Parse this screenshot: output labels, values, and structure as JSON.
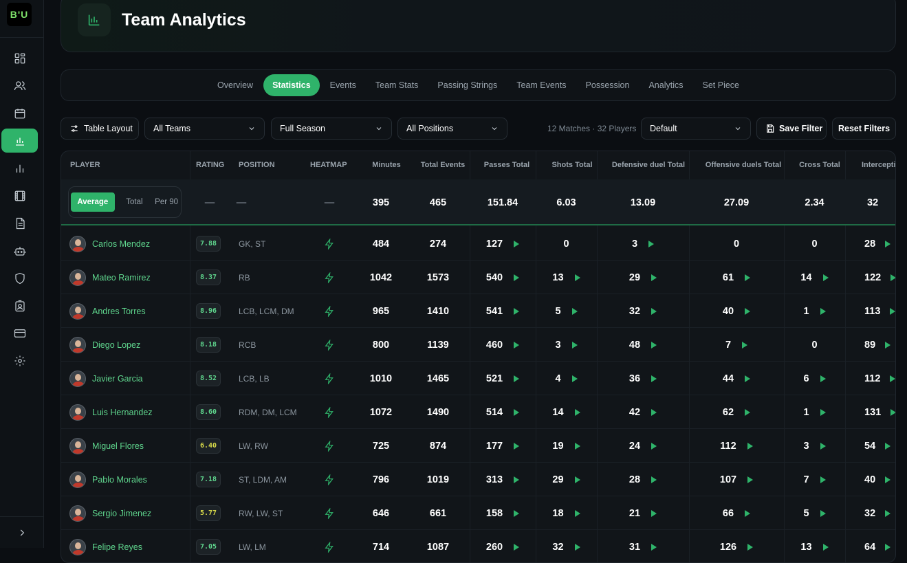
{
  "app": {
    "logo_text": "B'U"
  },
  "sidebar": {
    "items": [
      {
        "icon": "dashboard-icon"
      },
      {
        "icon": "users-icon"
      },
      {
        "icon": "calendar-icon"
      },
      {
        "icon": "analytics-icon",
        "active": true
      },
      {
        "icon": "bar-chart-icon"
      },
      {
        "icon": "film-icon"
      },
      {
        "icon": "document-icon"
      },
      {
        "icon": "robot-icon"
      },
      {
        "icon": "shield-icon"
      },
      {
        "icon": "id-badge-icon"
      },
      {
        "icon": "credit-card-icon"
      },
      {
        "icon": "gear-icon"
      }
    ],
    "collapse_icon": "chevron-right-icon"
  },
  "header": {
    "title": "Team Analytics",
    "icon": "analytics-icon"
  },
  "tabs": [
    {
      "label": "Overview"
    },
    {
      "label": "Statistics",
      "active": true
    },
    {
      "label": "Events"
    },
    {
      "label": "Team Stats"
    },
    {
      "label": "Passing Strings"
    },
    {
      "label": "Team Events"
    },
    {
      "label": "Possession"
    },
    {
      "label": "Analytics"
    },
    {
      "label": "Set Piece"
    }
  ],
  "filters": {
    "table_layout_label": "Table Layout",
    "team": "All Teams",
    "period": "Full Season",
    "position": "All Positions",
    "summary": "12 Matches · 32 Players",
    "preset": "Default",
    "save_label": "Save Filter",
    "reset_label": "Reset Filters"
  },
  "table": {
    "headers": {
      "player": "PLAYER",
      "rating": "RATING",
      "position": "POSITION",
      "heatmap": "HEATMAP",
      "minutes": "Minutes",
      "total_events": "Total Events",
      "passes": "Passes Total",
      "shots": "Shots Total",
      "def_duel": "Defensive duel Total",
      "off_duels": "Offensive duels Total",
      "cross": "Cross Total",
      "interceptions": "Interceptio"
    },
    "mode": {
      "average": "Average",
      "total": "Total",
      "per90": "Per 90"
    },
    "averages": {
      "rating": "—",
      "position": "—",
      "heatmap": "—",
      "minutes": "395",
      "total_events": "465",
      "passes": "151.84",
      "shots": "6.03",
      "def_duel": "13.09",
      "off_duels": "27.09",
      "cross": "2.34",
      "interceptions": "32"
    },
    "rows": [
      {
        "name": "Carlos Mendez",
        "rating": "7.88",
        "rating_color": "green",
        "position": "GK, ST",
        "minutes": "484",
        "total_events": "274",
        "passes": "127",
        "shots": "0",
        "def_duel": "3",
        "off_duels": "0",
        "cross": "0",
        "interceptions": "28"
      },
      {
        "name": "Mateo Ramirez",
        "rating": "8.37",
        "rating_color": "green",
        "position": "RB",
        "minutes": "1042",
        "total_events": "1573",
        "passes": "540",
        "shots": "13",
        "def_duel": "29",
        "off_duels": "61",
        "cross": "14",
        "interceptions": "122"
      },
      {
        "name": "Andres Torres",
        "rating": "8.96",
        "rating_color": "green",
        "position": "LCB, LCM, DM",
        "minutes": "965",
        "total_events": "1410",
        "passes": "541",
        "shots": "5",
        "def_duel": "32",
        "off_duels": "40",
        "cross": "1",
        "interceptions": "113"
      },
      {
        "name": "Diego Lopez",
        "rating": "8.18",
        "rating_color": "green",
        "position": "RCB",
        "minutes": "800",
        "total_events": "1139",
        "passes": "460",
        "shots": "3",
        "def_duel": "48",
        "off_duels": "7",
        "cross": "0",
        "interceptions": "89"
      },
      {
        "name": "Javier Garcia",
        "rating": "8.52",
        "rating_color": "green",
        "position": "LCB, LB",
        "minutes": "1010",
        "total_events": "1465",
        "passes": "521",
        "shots": "4",
        "def_duel": "36",
        "off_duels": "44",
        "cross": "6",
        "interceptions": "112"
      },
      {
        "name": "Luis Hernandez",
        "rating": "8.60",
        "rating_color": "green",
        "position": "RDM, DM, LCM",
        "minutes": "1072",
        "total_events": "1490",
        "passes": "514",
        "shots": "14",
        "def_duel": "42",
        "off_duels": "62",
        "cross": "1",
        "interceptions": "131"
      },
      {
        "name": "Miguel Flores",
        "rating": "6.40",
        "rating_color": "yellow",
        "position": "LW, RW",
        "minutes": "725",
        "total_events": "874",
        "passes": "177",
        "shots": "19",
        "def_duel": "24",
        "off_duels": "112",
        "cross": "3",
        "interceptions": "54"
      },
      {
        "name": "Pablo Morales",
        "rating": "7.18",
        "rating_color": "green",
        "position": "ST, LDM, AM",
        "minutes": "796",
        "total_events": "1019",
        "passes": "313",
        "shots": "29",
        "def_duel": "28",
        "off_duels": "107",
        "cross": "7",
        "interceptions": "40"
      },
      {
        "name": "Sergio Jimenez",
        "rating": "5.77",
        "rating_color": "yellow",
        "position": "RW, LW, ST",
        "minutes": "646",
        "total_events": "661",
        "passes": "158",
        "shots": "18",
        "def_duel": "21",
        "off_duels": "66",
        "cross": "5",
        "interceptions": "32"
      },
      {
        "name": "Felipe Reyes",
        "rating": "7.05",
        "rating_color": "green",
        "position": "LW, LM",
        "minutes": "714",
        "total_events": "1087",
        "passes": "260",
        "shots": "32",
        "def_duel": "31",
        "off_duels": "126",
        "cross": "13",
        "interceptions": "64"
      }
    ]
  }
}
